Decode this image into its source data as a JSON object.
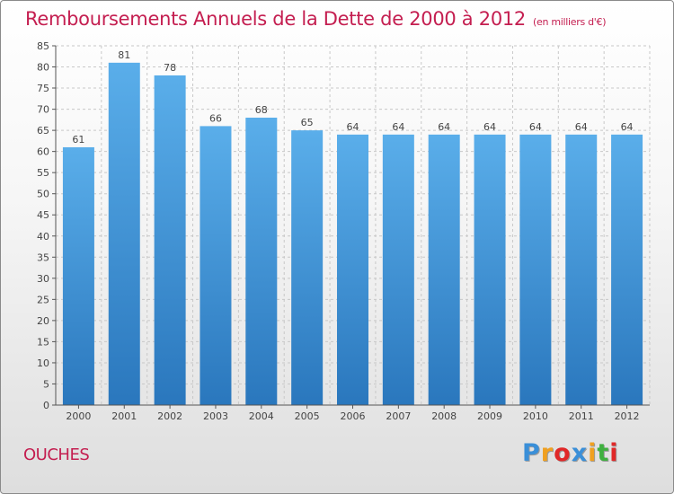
{
  "chart_data": {
    "type": "bar",
    "title": "Remboursements Annuels de la Dette de 2000 à 2012",
    "subtitle": "(en milliers d'€)",
    "categories": [
      "2000",
      "2001",
      "2002",
      "2003",
      "2004",
      "2005",
      "2006",
      "2007",
      "2008",
      "2009",
      "2010",
      "2011",
      "2012"
    ],
    "values": [
      61,
      81,
      78,
      66,
      68,
      65,
      64,
      64,
      64,
      64,
      64,
      64,
      64
    ],
    "ylim": [
      0,
      85
    ],
    "yticks": [
      0,
      5,
      10,
      15,
      20,
      25,
      30,
      35,
      40,
      45,
      50,
      55,
      60,
      65,
      70,
      75,
      80,
      85
    ],
    "grid": true,
    "xlabel": "",
    "ylabel": ""
  },
  "commune": "OUCHES",
  "logo": {
    "letters": [
      "P",
      "r",
      "o",
      "x",
      "i",
      "t",
      "i"
    ],
    "colors": [
      "#3a8fd8",
      "#f0a020",
      "#e02828",
      "#3a8fd8",
      "#f0a020",
      "#40b040",
      "#e02828"
    ]
  },
  "colors": {
    "title": "#c41e50",
    "bar_light": "#5aaeea",
    "bar_dark": "#2a7fc4",
    "grid": "#c8c8c8"
  }
}
